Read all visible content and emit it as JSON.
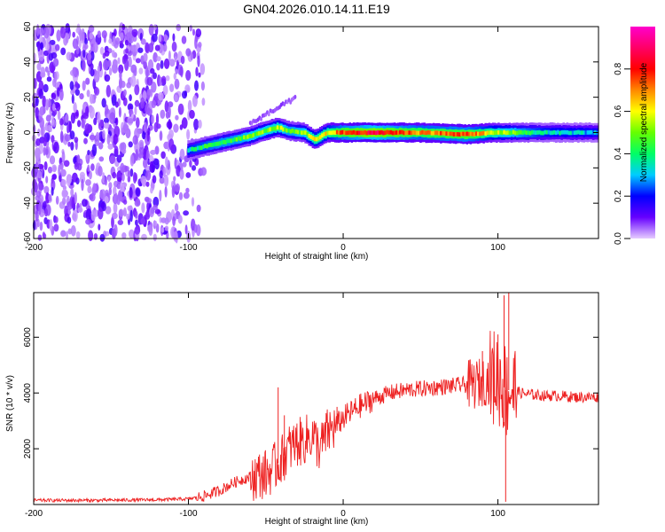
{
  "chart_data": [
    {
      "type": "heatmap",
      "title": "GN04.2026.010.14.11.E19",
      "xlabel": "Height of straight line (km)",
      "ylabel": "Frequency (Hz)",
      "xlim": [
        -200,
        165
      ],
      "ylim": [
        -60,
        60
      ],
      "xticks": [
        -200,
        -100,
        0,
        100
      ],
      "xtick_labels": [
        "-200",
        "-100",
        "0",
        "100"
      ],
      "yticks": [
        -60,
        -40,
        -20,
        0,
        20,
        40,
        60
      ],
      "ytick_labels": [
        "-60",
        "-40",
        "-20",
        "0",
        "20",
        "40",
        "60"
      ],
      "colorbar": {
        "label": "Normalized spectral amplitude",
        "range": [
          0,
          1
        ],
        "ticks": [
          0.0,
          0.2,
          0.4,
          0.6,
          0.8
        ],
        "tick_labels": [
          "0.0",
          "0.2",
          "0.4",
          "0.6",
          "0.8"
        ],
        "colors": [
          "#e6ccff",
          "#6600ff",
          "#0000ff",
          "#00ccff",
          "#00ff66",
          "#66ff00",
          "#ffff00",
          "#ff8800",
          "#ff0000",
          "#ff0066",
          "#ff00cc"
        ]
      },
      "noise_region_x": [
        -200,
        -90
      ],
      "signal_band": [
        {
          "x": -100,
          "freq": -10,
          "amp": 0.35
        },
        {
          "x": -90,
          "freq": -8,
          "amp": 0.4
        },
        {
          "x": -80,
          "freq": -6,
          "amp": 0.45
        },
        {
          "x": -70,
          "freq": -4,
          "amp": 0.45
        },
        {
          "x": -60,
          "freq": -2,
          "amp": 0.5
        },
        {
          "x": -50,
          "freq": 1,
          "amp": 0.5
        },
        {
          "x": -42,
          "freq": 3,
          "amp": 0.55
        },
        {
          "x": -35,
          "freq": 1,
          "amp": 0.45
        },
        {
          "x": -25,
          "freq": 0,
          "amp": 0.5
        },
        {
          "x": -18,
          "freq": -4,
          "amp": 0.6
        },
        {
          "x": -10,
          "freq": 0,
          "amp": 0.6
        },
        {
          "x": 0,
          "freq": 0,
          "amp": 0.75
        },
        {
          "x": 20,
          "freq": 0,
          "amp": 0.85
        },
        {
          "x": 50,
          "freq": 0,
          "amp": 0.7
        },
        {
          "x": 80,
          "freq": -1,
          "amp": 0.75
        },
        {
          "x": 100,
          "freq": 0,
          "amp": 0.55
        },
        {
          "x": 130,
          "freq": 0,
          "amp": 0.35
        },
        {
          "x": 165,
          "freq": 0,
          "amp": 0.3
        }
      ]
    },
    {
      "type": "line",
      "xlabel": "Height of straight line (km)",
      "ylabel": "SNR (10 * v/v)",
      "xlim": [
        -200,
        165
      ],
      "ylim": [
        0,
        7600
      ],
      "xticks": [
        -200,
        -100,
        0,
        100
      ],
      "xtick_labels": [
        "-200",
        "-100",
        "0",
        "100"
      ],
      "yticks": [
        2000,
        4000,
        6000
      ],
      "ytick_labels": [
        "2000",
        "4000",
        "6000"
      ],
      "color": "#ee2222",
      "series": [
        {
          "name": "SNR",
          "x": [
            -200,
            -180,
            -160,
            -140,
            -120,
            -100,
            -90,
            -80,
            -70,
            -60,
            -50,
            -45,
            -40,
            -35,
            -30,
            -25,
            -20,
            -15,
            -10,
            -5,
            0,
            10,
            20,
            30,
            40,
            50,
            60,
            70,
            80,
            85,
            90,
            95,
            100,
            103,
            106,
            108,
            110,
            115,
            120,
            130,
            140,
            150,
            165
          ],
          "y": [
            150,
            150,
            150,
            160,
            170,
            200,
            300,
            500,
            800,
            1000,
            1100,
            1300,
            1600,
            2000,
            2200,
            2300,
            2500,
            2000,
            2600,
            2800,
            3100,
            3500,
            3800,
            4000,
            4100,
            4150,
            4200,
            4250,
            4300,
            4300,
            4400,
            4500,
            4600,
            4300,
            4000,
            4200,
            4100,
            4000,
            3950,
            3900,
            3900,
            3850,
            3850
          ]
        }
      ],
      "spikes": [
        {
          "x": -42,
          "y": 4200
        },
        {
          "x": -38,
          "y": 3200
        },
        {
          "x": -4,
          "y": 3500
        },
        {
          "x": 90,
          "y": 5500
        },
        {
          "x": 100,
          "y": 6100
        },
        {
          "x": 104,
          "y": 7500
        },
        {
          "x": 107,
          "y": 7600
        },
        {
          "x": 105,
          "y": 100
        }
      ]
    }
  ]
}
